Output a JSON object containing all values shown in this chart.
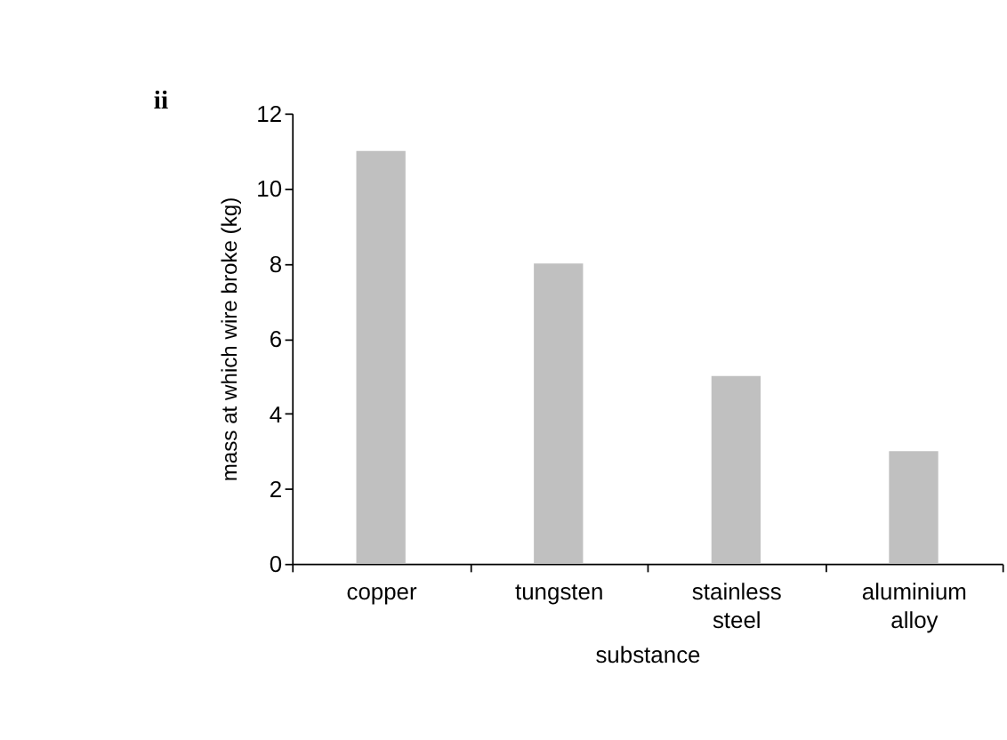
{
  "chart_data": {
    "type": "bar",
    "categories": [
      "copper",
      "tungsten",
      "stainless steel",
      "aluminium alloy"
    ],
    "values": [
      11,
      8,
      5,
      3
    ],
    "color": "#c0c0c0",
    "ylim": [
      0,
      12
    ],
    "yticks": [
      0,
      2,
      4,
      6,
      8,
      10,
      12
    ],
    "grid": false,
    "xlabel": "substance",
    "ylabel": "mass at which wire broke (kg)",
    "annotations": [
      "ii"
    ]
  }
}
